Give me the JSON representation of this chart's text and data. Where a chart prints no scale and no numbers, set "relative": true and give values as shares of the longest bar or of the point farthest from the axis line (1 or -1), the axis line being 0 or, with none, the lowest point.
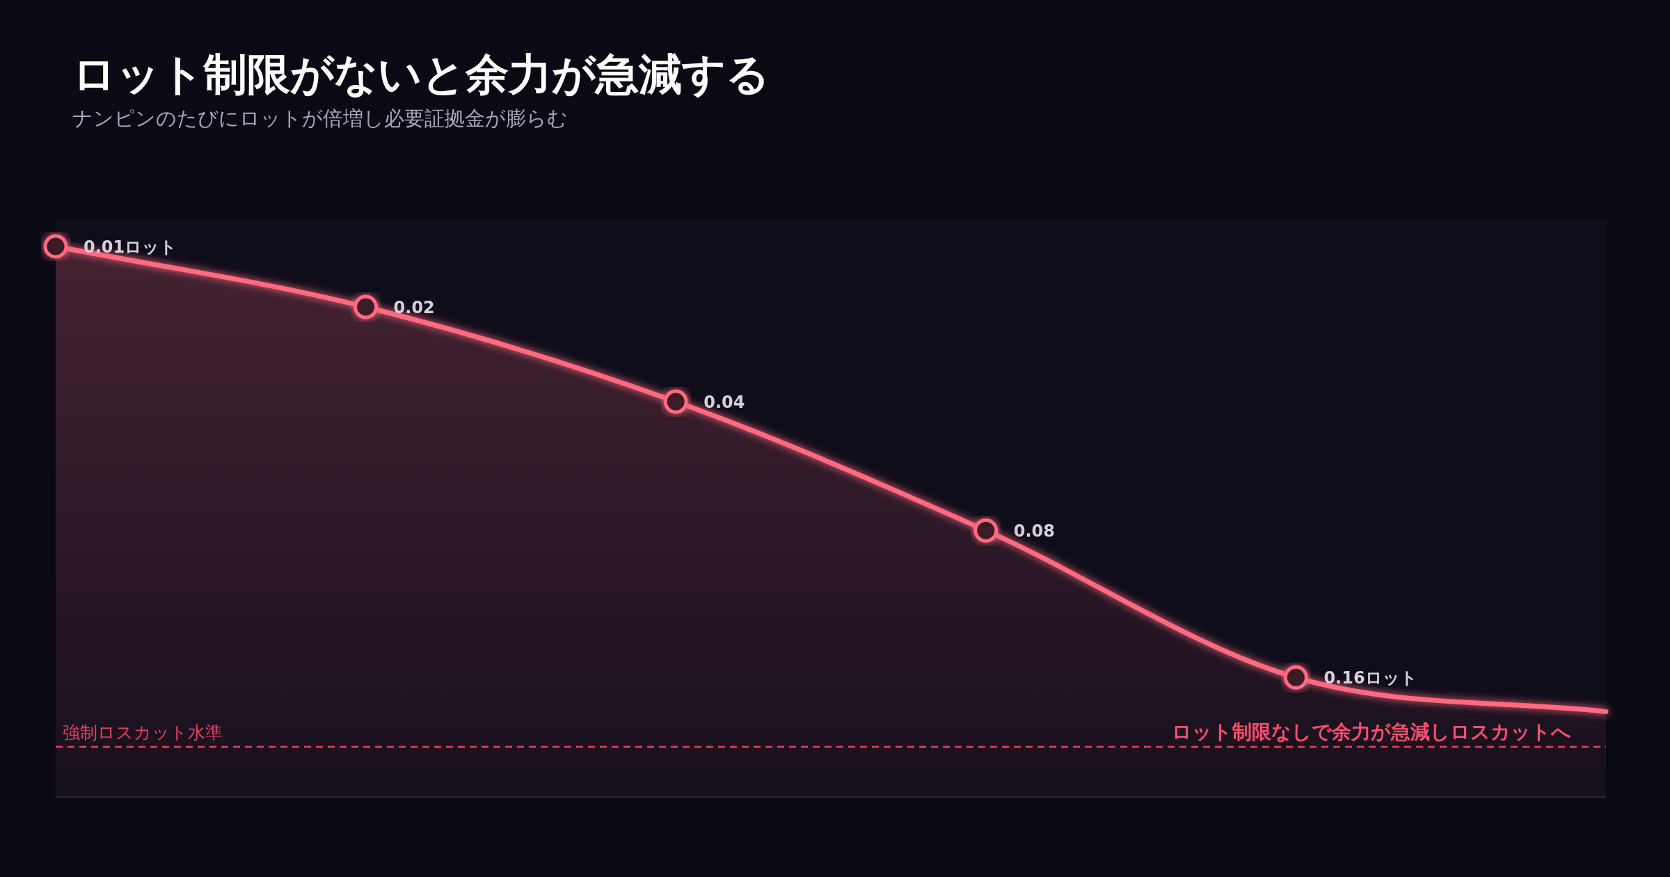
{
  "chart_data": {
    "type": "area",
    "title": "ロット制限がないと余力が急減する",
    "subtitle": "ナンピンのたびにロットが倍増し必要証拠金が膨らむ",
    "relative": true,
    "categories": [
      null,
      null,
      null,
      null,
      null,
      null
    ],
    "marker": "circle",
    "line_style": "solid",
    "series": [
      {
        "color": "#ff6b81",
        "values": [
          1,
          0.89,
          0.718,
          0.484,
          0.217,
          0.155
        ]
      }
    ],
    "ref_lines": [
      {
        "axis": "y",
        "value": 0.091,
        "label": "強制ロスカット水準",
        "color": "#e8405f",
        "line_style": "dashed"
      }
    ],
    "annotations": [
      "0.01ロット",
      "0.02",
      "0.04",
      "0.08",
      "0.16ロット",
      "ロット制限なしで余力が急減しロスカットへ"
    ]
  }
}
